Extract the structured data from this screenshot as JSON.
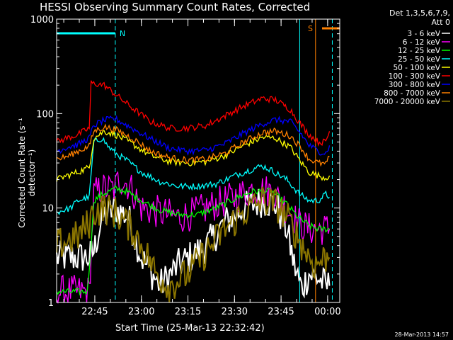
{
  "header": {
    "title": "HESSI Observing Summary Count Rates, Corrected",
    "detectors_line1": "Det 1,3,5,6,7,9,",
    "detectors_line2": "Att 0"
  },
  "timestamp": "28-Mar-2013 14:57",
  "chart_data": {
    "type": "line",
    "title": "HESSI Observing Summary Count Rates, Corrected",
    "xlabel": "Start Time (25-Mar-13 22:32:42)",
    "ylabel": "Corrected Count Rate (s⁻¹ detector⁻¹)",
    "yscale": "log",
    "ylim": [
      1,
      1000
    ],
    "xlim": [
      22.545,
      24.065
    ],
    "x_unit": "hours (UT)",
    "x_ticks": [
      "22:45",
      "23:00",
      "23:15",
      "23:30",
      "23:45",
      "00:00"
    ],
    "y_ticks": [
      "1",
      "10",
      "100",
      "1000"
    ],
    "grid": false,
    "legend_position": "right",
    "flags": [
      {
        "label": "N",
        "start": 22.545,
        "end": 22.86,
        "color": "#00ffff"
      },
      {
        "label": "S",
        "start": 23.97,
        "end": 24.065,
        "color": "#ff8000"
      }
    ],
    "markers": [
      {
        "time": 22.86,
        "color": "#00ffff",
        "style": "dashed"
      },
      {
        "time": 23.85,
        "color": "#00ffff",
        "style": "solid"
      },
      {
        "time": 23.935,
        "color": "#ff8000",
        "style": "solid"
      },
      {
        "time": 24.025,
        "color": "#00ffff",
        "style": "dashed"
      }
    ],
    "series": [
      {
        "name": "3 - 6 keV",
        "color": "#ffffff",
        "x": [
          22.545,
          22.72,
          22.745,
          22.79,
          22.86,
          22.93,
          23.0,
          23.1,
          23.2,
          23.35,
          23.45,
          23.55,
          23.65,
          23.72,
          23.78,
          23.82,
          23.86,
          23.9,
          23.95,
          23.99,
          24.01
        ],
        "y": [
          3,
          3,
          3.5,
          8,
          10,
          8,
          3,
          1.5,
          2.5,
          4,
          7,
          10,
          12,
          11,
          6,
          2.5,
          1.4,
          2,
          1.8,
          1.5,
          1.5
        ]
      },
      {
        "name": "6 - 12 keV",
        "color": "#ff00ff",
        "x": [
          22.545,
          22.66,
          22.72,
          22.745,
          22.79,
          22.86,
          22.88,
          22.94,
          23.0,
          23.1,
          23.2,
          23.3,
          23.4,
          23.5,
          23.6,
          23.7,
          23.78,
          23.84,
          23.9,
          23.95,
          23.99,
          24.01
        ],
        "y": [
          1.3,
          1.3,
          1.3,
          14,
          16,
          16,
          21,
          17,
          10,
          9,
          8,
          9,
          11,
          13,
          16,
          15,
          10,
          7,
          6,
          6,
          6,
          6
        ]
      },
      {
        "name": "12 - 25 keV",
        "color": "#00ff00",
        "x": [
          22.545,
          22.71,
          22.73,
          22.745,
          22.79,
          22.86,
          22.92,
          23.0,
          23.1,
          23.2,
          23.3,
          23.4,
          23.5,
          23.6,
          23.7,
          23.78,
          23.84,
          23.9,
          23.95,
          23.99,
          24.01
        ],
        "y": [
          1.3,
          1.3,
          4,
          12,
          14,
          16,
          15,
          12,
          9.5,
          8.5,
          8.5,
          10,
          12.5,
          15,
          15,
          11,
          8,
          6.5,
          6,
          6,
          6
        ]
      },
      {
        "name": "25 - 50 keV",
        "color": "#00ffff",
        "x": [
          22.545,
          22.62,
          22.66,
          22.72,
          22.745,
          22.79,
          22.82,
          22.86,
          22.92,
          23.0,
          23.1,
          23.2,
          23.3,
          23.4,
          23.5,
          23.6,
          23.65,
          23.7,
          23.78,
          23.85,
          23.9,
          23.95,
          23.99,
          24.01
        ],
        "y": [
          9,
          10,
          12,
          13,
          50,
          55,
          45,
          38,
          32,
          24,
          19,
          17,
          17,
          18,
          22,
          26,
          28,
          25,
          20,
          14,
          12,
          12,
          14,
          13
        ]
      },
      {
        "name": "50 - 100 keV",
        "color": "#ffff00",
        "x": [
          22.545,
          22.6,
          22.66,
          22.72,
          22.745,
          22.8,
          22.86,
          22.95,
          23.05,
          23.15,
          23.25,
          23.35,
          23.45,
          23.55,
          23.65,
          23.72,
          23.8,
          23.86,
          23.9,
          23.95,
          23.99,
          24.01
        ],
        "y": [
          20,
          22,
          24,
          27,
          55,
          65,
          60,
          48,
          36,
          31,
          30,
          31,
          36,
          46,
          56,
          55,
          44,
          30,
          24,
          22,
          21,
          22
        ]
      },
      {
        "name": "100 - 300 keV",
        "color": "#ff0000",
        "x": [
          22.545,
          22.6,
          22.66,
          22.72,
          22.73,
          22.8,
          22.86,
          22.95,
          23.05,
          23.15,
          23.25,
          23.35,
          23.45,
          23.55,
          23.65,
          23.72,
          23.8,
          23.86,
          23.9,
          23.95,
          23.99,
          24.01
        ],
        "y": [
          50,
          55,
          60,
          70,
          210,
          200,
          160,
          115,
          82,
          70,
          70,
          75,
          95,
          120,
          145,
          140,
          110,
          75,
          60,
          50,
          50,
          65
        ]
      },
      {
        "name": "300 - 800 keV",
        "color": "#0000ff",
        "x": [
          22.545,
          22.6,
          22.66,
          22.72,
          22.745,
          22.8,
          22.86,
          22.95,
          23.05,
          23.15,
          23.25,
          23.35,
          23.45,
          23.55,
          23.65,
          23.72,
          23.8,
          23.86,
          23.9,
          23.95,
          23.99,
          24.01
        ],
        "y": [
          40,
          44,
          47,
          55,
          75,
          85,
          88,
          70,
          54,
          43,
          40,
          41,
          48,
          62,
          78,
          86,
          82,
          60,
          46,
          40,
          38,
          46
        ]
      },
      {
        "name": "800 - 7000 keV",
        "color": "#ff8000",
        "x": [
          22.545,
          22.6,
          22.66,
          22.72,
          22.745,
          22.8,
          22.86,
          22.95,
          23.05,
          23.15,
          23.25,
          23.35,
          23.45,
          23.55,
          23.65,
          23.72,
          23.8,
          23.86,
          23.9,
          23.95,
          23.99,
          24.01
        ],
        "y": [
          33,
          35,
          40,
          45,
          65,
          72,
          68,
          55,
          40,
          34,
          32,
          33,
          38,
          50,
          63,
          65,
          58,
          43,
          33,
          30,
          29,
          35
        ]
      },
      {
        "name": "7000 - 20000 keV",
        "color": "#8b7500",
        "x": [
          22.545,
          22.6,
          22.66,
          22.72,
          22.74,
          22.8,
          22.86,
          22.95,
          23.02,
          23.08,
          23.15,
          23.25,
          23.35,
          23.45,
          23.55,
          23.65,
          23.72,
          23.78,
          23.84,
          23.88,
          23.93,
          23.99,
          24.01
        ],
        "y": [
          4,
          4.5,
          5,
          7,
          9,
          10,
          9,
          6,
          3.5,
          2,
          1.5,
          2,
          3.5,
          6,
          9,
          12,
          11,
          8,
          5,
          3.5,
          2.5,
          3,
          3
        ]
      }
    ]
  }
}
